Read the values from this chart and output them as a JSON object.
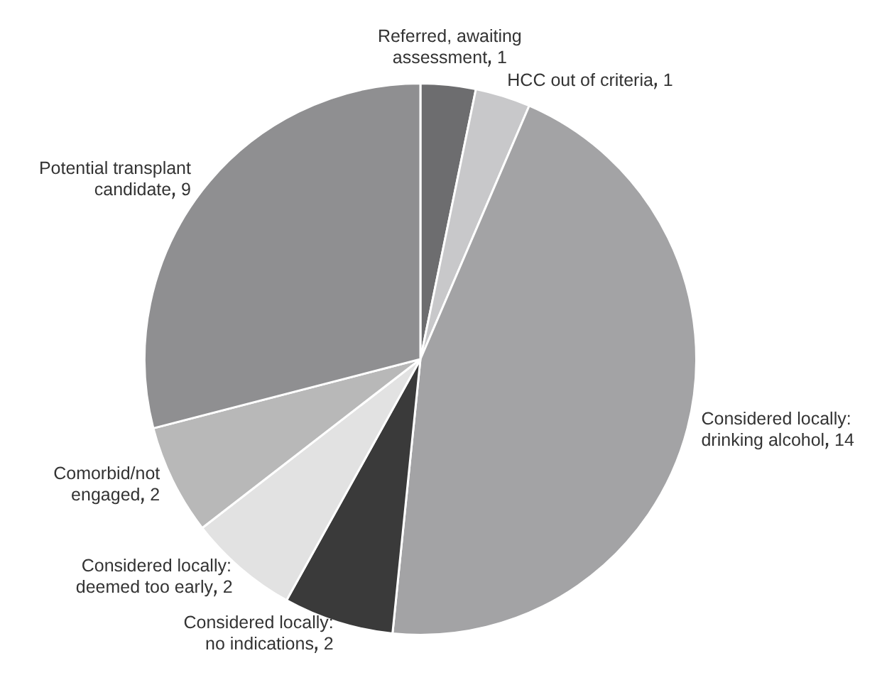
{
  "chart_data": {
    "type": "pie",
    "categories": [
      "Referred, awaiting assessment",
      "HCC out of criteria",
      "Considered locally: drinking alcohol",
      "Considered locally: no indications",
      "Considered locally: deemed too early",
      "Comorbid/not engaged",
      "Potential transplant candidate"
    ],
    "values": [
      1,
      1,
      14,
      2,
      2,
      2,
      9
    ],
    "colors": [
      "#6d6d6f",
      "#c8c8ca",
      "#a3a3a5",
      "#3a3a3a",
      "#e2e2e2",
      "#b8b8b8",
      "#8f8f91"
    ],
    "data_labels": true,
    "legend": false
  }
}
